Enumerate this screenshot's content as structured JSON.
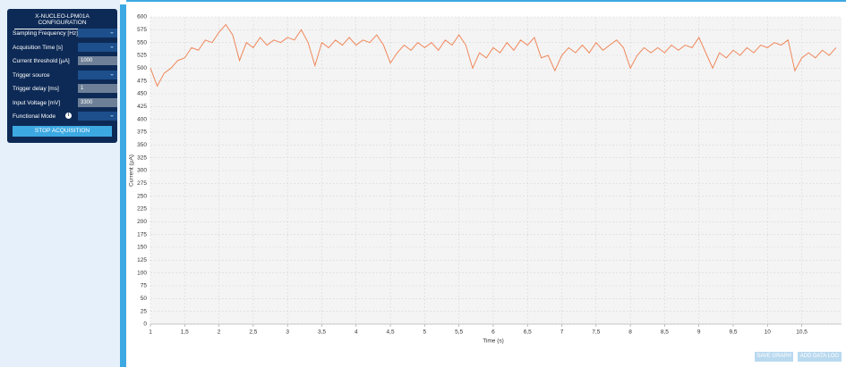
{
  "config": {
    "title": "X-NUCLEO-LPM01A CONFIGURATION",
    "fields": [
      {
        "label": "Sampling Frequency [Hz]",
        "kind": "select"
      },
      {
        "label": "Acquisition Time [s]",
        "kind": "select"
      },
      {
        "label": "Current threshold [µA]",
        "kind": "input",
        "value": "1000"
      },
      {
        "label": "Trigger source",
        "kind": "select"
      },
      {
        "label": "Trigger delay [ms]",
        "kind": "input",
        "value": "1"
      },
      {
        "label": "Input Voltage [mV]",
        "kind": "input",
        "value": "3300"
      },
      {
        "label": "Functional Mode",
        "kind": "select"
      }
    ],
    "button": "STOP ACQUISITION"
  },
  "actions": [
    "SAVE GRAPH",
    "ADD DATA LOG"
  ],
  "chart_data": {
    "type": "line",
    "x_label": "Time (s)",
    "y_label": "Current (µA)",
    "color": "#f0875a",
    "grid": true,
    "x": [
      1.0,
      1.1,
      1.2,
      1.3,
      1.4,
      1.5,
      1.6,
      1.7,
      1.8,
      1.9,
      2.0,
      2.1,
      2.2,
      2.3,
      2.4,
      2.5,
      2.6,
      2.7,
      2.8,
      2.9,
      3.0,
      3.1,
      3.2,
      3.3,
      3.4,
      3.5,
      3.6,
      3.7,
      3.8,
      3.9,
      4.0,
      4.1,
      4.2,
      4.3,
      4.4,
      4.5,
      4.6,
      4.7,
      4.8,
      4.9,
      5.0,
      5.1,
      5.2,
      5.3,
      5.4,
      5.5,
      5.6,
      5.7,
      5.8,
      5.9,
      6.0,
      6.1,
      6.2,
      6.3,
      6.4,
      6.5,
      6.6,
      6.7,
      6.8,
      6.9,
      7.0,
      7.1,
      7.2,
      7.3,
      7.4,
      7.5,
      7.6,
      7.7,
      7.8,
      7.9,
      8.0,
      8.1,
      8.2,
      8.3,
      8.4,
      8.5,
      8.6,
      8.7,
      8.8,
      8.9,
      9.0,
      9.1,
      9.2,
      9.3,
      9.4,
      9.5,
      9.6,
      9.7,
      9.8,
      9.9,
      10.0,
      10.1,
      10.2,
      10.3,
      10.4,
      10.5,
      10.6,
      10.7,
      10.8,
      10.9,
      11.0
    ],
    "values": [
      500,
      465,
      490,
      500,
      515,
      520,
      540,
      535,
      555,
      550,
      570,
      585,
      565,
      515,
      550,
      540,
      560,
      545,
      555,
      550,
      560,
      555,
      575,
      550,
      505,
      550,
      540,
      555,
      545,
      560,
      545,
      555,
      550,
      565,
      545,
      510,
      530,
      545,
      535,
      550,
      540,
      550,
      535,
      555,
      545,
      565,
      545,
      500,
      530,
      520,
      540,
      530,
      550,
      535,
      555,
      545,
      560,
      520,
      525,
      495,
      525,
      540,
      530,
      545,
      530,
      550,
      535,
      545,
      555,
      540,
      500,
      525,
      540,
      530,
      540,
      530,
      545,
      535,
      545,
      540,
      560,
      530,
      500,
      530,
      520,
      535,
      525,
      540,
      530,
      545,
      540,
      550,
      545,
      555,
      495,
      520,
      530,
      520,
      535,
      525,
      540
    ],
    "xlim": [
      1,
      11.08
    ],
    "ylim": [
      0,
      600
    ],
    "xticks": [
      1,
      {
        "value": 1.5,
        "label": "1,5"
      },
      2,
      {
        "value": 2.5,
        "label": "2,5"
      },
      3,
      {
        "value": 3.5,
        "label": "3,5"
      },
      4,
      {
        "value": 4.5,
        "label": "4,5"
      },
      5,
      {
        "value": 5.5,
        "label": "5,5"
      },
      6,
      {
        "value": 6.5,
        "label": "6,5"
      },
      7,
      {
        "value": 7.5,
        "label": "7,5"
      },
      8,
      {
        "value": 8.5,
        "label": "8,5"
      },
      9,
      {
        "value": 9.5,
        "label": "9,5"
      },
      10,
      {
        "value": 10.5,
        "label": "10,5"
      }
    ],
    "yticks": [
      0,
      25,
      50,
      75,
      100,
      125,
      150,
      175,
      200,
      225,
      250,
      275,
      300,
      325,
      350,
      375,
      400,
      425,
      450,
      475,
      500,
      525,
      550,
      575,
      600
    ]
  }
}
